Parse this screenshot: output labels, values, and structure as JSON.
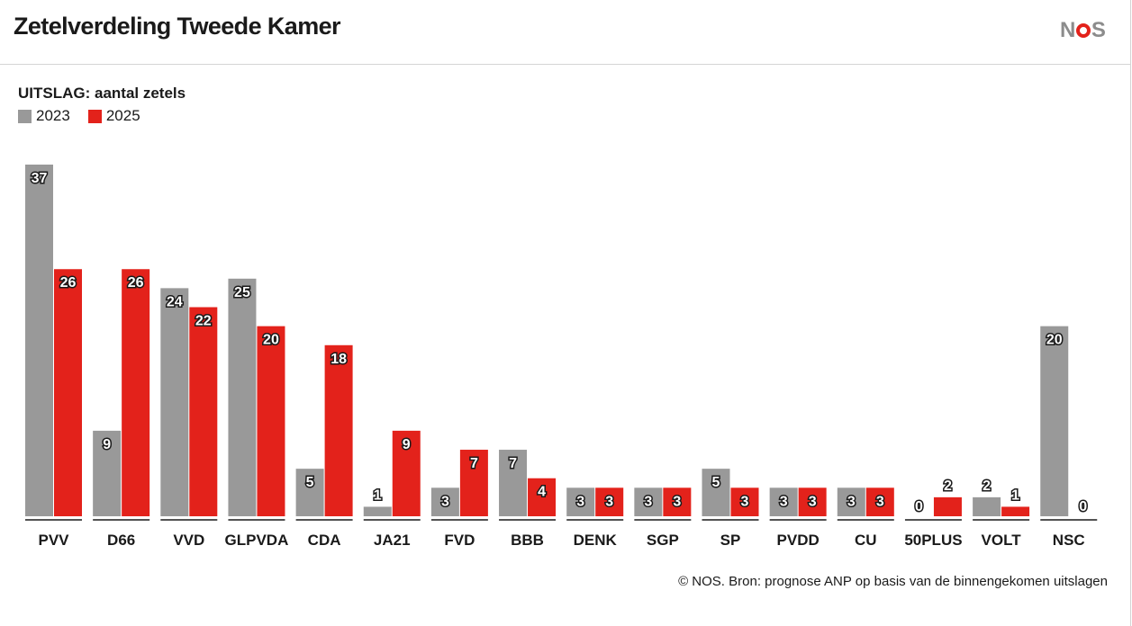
{
  "header": {
    "title": "Zetelverdeling Tweede Kamer",
    "logo_text": [
      "N",
      "S"
    ]
  },
  "chart_data": {
    "type": "bar",
    "title": "UITSLAG: aantal zetels",
    "categories": [
      "PVV",
      "D66",
      "VVD",
      "GLPVDA",
      "CDA",
      "JA21",
      "FVD",
      "BBB",
      "DENK",
      "SGP",
      "SP",
      "PVDD",
      "CU",
      "50PLUS",
      "VOLT",
      "NSC"
    ],
    "series": [
      {
        "name": "2023",
        "color": "#999999",
        "values": [
          37,
          9,
          24,
          25,
          5,
          1,
          3,
          7,
          3,
          3,
          5,
          3,
          3,
          0,
          2,
          20
        ]
      },
      {
        "name": "2025",
        "color": "#e3221b",
        "values": [
          26,
          26,
          22,
          20,
          18,
          9,
          7,
          4,
          3,
          3,
          3,
          3,
          3,
          2,
          1,
          0
        ]
      }
    ],
    "ylim": [
      0,
      37
    ],
    "xlabel": "",
    "ylabel": "",
    "grid": false,
    "legend": "top-left"
  },
  "source": "© NOS. Bron: prognose ANP op basis van de binnengekomen uitslagen"
}
